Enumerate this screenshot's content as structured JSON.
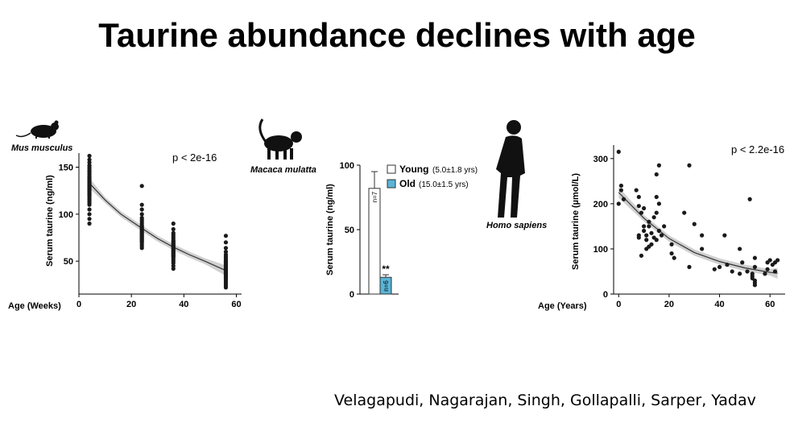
{
  "title": "Taurine abundance declines with age",
  "authors": "Velagapudi, Nagarajan, Singh, Gollapalli, Sarper, Yadav",
  "colors": {
    "points": "#1a1a1a",
    "ci_band": "#c8c8c8",
    "fit_line": "#333333",
    "old_bar": "#5ab4d6",
    "young_bar": "#ffffff"
  },
  "chart_data": [
    {
      "type": "scatter",
      "species": "Mus musculus",
      "icon": "mouse-icon",
      "ylabel": "Serum taurine (ng/ml)",
      "xlabel": "Age (Weeks)",
      "annotation": "p < 2e-16",
      "xlim": [
        0,
        62
      ],
      "ylim": [
        15,
        165
      ],
      "xticks": [
        0,
        20,
        40,
        60
      ],
      "yticks": [
        50,
        100,
        150
      ],
      "fit": {
        "x": [
          4,
          10,
          16,
          24,
          30,
          36,
          42,
          48,
          56
        ],
        "y": [
          133,
          115,
          100,
          85,
          74,
          65,
          57,
          50,
          40
        ]
      },
      "groups": [
        {
          "x": 4,
          "y": [
            162,
            158,
            155,
            152,
            150,
            148,
            146,
            145,
            143,
            142,
            140,
            139,
            138,
            137,
            136,
            135,
            134,
            133,
            132,
            131,
            130,
            129,
            128,
            127,
            126,
            125,
            124,
            123,
            122,
            121,
            120,
            118,
            116,
            114,
            112,
            110,
            105,
            100,
            95,
            90
          ]
        },
        {
          "x": 24,
          "y": [
            130,
            110,
            105,
            100,
            96,
            94,
            92,
            90,
            88,
            87,
            86,
            85,
            84,
            83,
            82,
            81,
            80,
            79,
            78,
            77,
            76,
            75,
            74,
            73,
            72,
            71,
            70,
            68,
            66,
            64
          ]
        },
        {
          "x": 36,
          "y": [
            90,
            84,
            80,
            78,
            76,
            74,
            72,
            71,
            70,
            69,
            68,
            67,
            66,
            65,
            64,
            63,
            62,
            61,
            60,
            59,
            58,
            57,
            56,
            55,
            54,
            52,
            50,
            48,
            45,
            42
          ]
        },
        {
          "x": 56,
          "y": [
            77,
            70,
            64,
            60,
            57,
            55,
            53,
            51,
            50,
            49,
            48,
            47,
            46,
            45,
            44,
            43,
            42,
            41,
            40,
            39,
            38,
            37,
            36,
            35,
            34,
            33,
            32,
            30,
            28,
            26,
            24,
            22
          ]
        }
      ]
    },
    {
      "type": "bar",
      "species": "Macaca mulatta",
      "icon": "monkey-icon",
      "ylabel": "Serum taurine (ng/ml)",
      "ylim": [
        0,
        100
      ],
      "yticks": [
        0,
        50,
        100
      ],
      "categories": [
        "Young",
        "Old"
      ],
      "values": [
        82,
        13
      ],
      "errors": [
        13,
        2
      ],
      "n_labels": [
        "n=7",
        "n=6"
      ],
      "significance": [
        "",
        "**"
      ],
      "legend": [
        {
          "label": "Young",
          "detail": "(5.0±1.8 yrs)"
        },
        {
          "label": "Old",
          "detail": "(15.0±1.5 yrs)"
        }
      ]
    },
    {
      "type": "scatter",
      "species": "Homo sapiens",
      "icon": "human-icon",
      "ylabel": "Serum taurine (µmol/L)",
      "xlabel": "Age (Years)",
      "annotation": "p < 2.2e-16",
      "xlim": [
        -2,
        66
      ],
      "ylim": [
        0,
        330
      ],
      "xticks": [
        0,
        20,
        40,
        60
      ],
      "yticks": [
        0,
        100,
        200,
        300
      ],
      "fit": {
        "x": [
          0,
          10,
          20,
          30,
          40,
          50,
          60,
          63
        ],
        "y": [
          225,
          168,
          123,
          92,
          72,
          58,
          48,
          46
        ]
      },
      "points": [
        [
          0,
          315
        ],
        [
          0,
          200
        ],
        [
          1,
          240
        ],
        [
          1,
          230
        ],
        [
          2,
          210
        ],
        [
          7,
          230
        ],
        [
          8,
          215
        ],
        [
          8,
          195
        ],
        [
          8,
          130
        ],
        [
          8,
          125
        ],
        [
          9,
          180
        ],
        [
          9,
          85
        ],
        [
          10,
          190
        ],
        [
          10,
          150
        ],
        [
          10,
          140
        ],
        [
          11,
          130
        ],
        [
          11,
          120
        ],
        [
          11,
          100
        ],
        [
          12,
          160
        ],
        [
          12,
          150
        ],
        [
          12,
          105
        ],
        [
          13,
          135
        ],
        [
          13,
          110
        ],
        [
          14,
          170
        ],
        [
          14,
          125
        ],
        [
          15,
          265
        ],
        [
          15,
          215
        ],
        [
          15,
          180
        ],
        [
          15,
          120
        ],
        [
          16,
          285
        ],
        [
          16,
          200
        ],
        [
          16,
          140
        ],
        [
          17,
          130
        ],
        [
          18,
          150
        ],
        [
          21,
          110
        ],
        [
          21,
          90
        ],
        [
          22,
          80
        ],
        [
          26,
          180
        ],
        [
          28,
          285
        ],
        [
          28,
          60
        ],
        [
          30,
          155
        ],
        [
          33,
          130
        ],
        [
          33,
          100
        ],
        [
          38,
          55
        ],
        [
          40,
          60
        ],
        [
          42,
          130
        ],
        [
          43,
          65
        ],
        [
          45,
          50
        ],
        [
          48,
          100
        ],
        [
          48,
          45
        ],
        [
          49,
          70
        ],
        [
          51,
          50
        ],
        [
          52,
          210
        ],
        [
          53,
          45
        ],
        [
          53,
          40
        ],
        [
          53,
          35
        ],
        [
          54,
          30
        ],
        [
          54,
          25
        ],
        [
          54,
          20
        ],
        [
          54,
          60
        ],
        [
          54,
          80
        ],
        [
          58,
          45
        ],
        [
          59,
          55
        ],
        [
          59,
          70
        ],
        [
          60,
          75
        ],
        [
          61,
          65
        ],
        [
          62,
          70
        ],
        [
          62,
          50
        ],
        [
          63,
          75
        ]
      ]
    }
  ]
}
